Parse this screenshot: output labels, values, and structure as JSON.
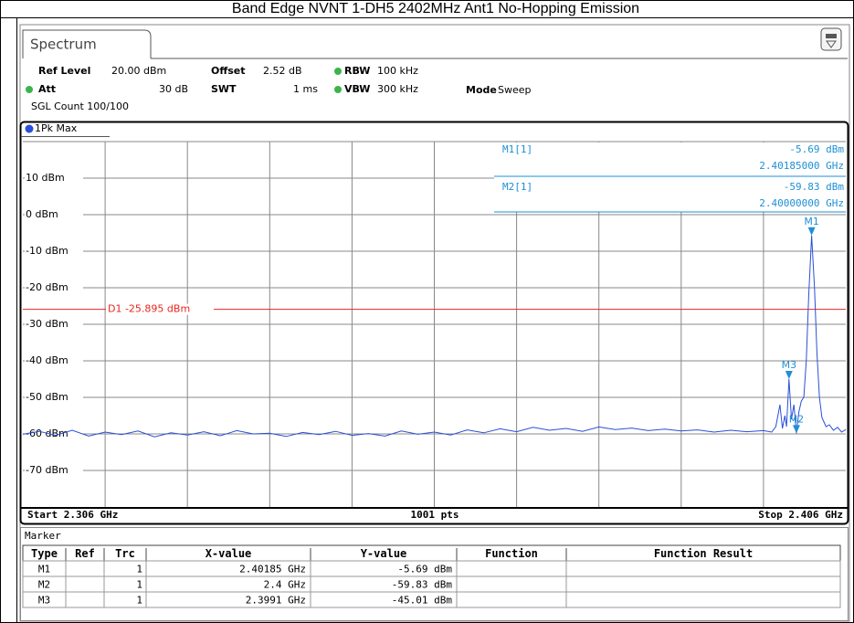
{
  "title": "Band Edge NVNT 1-DH5 2402MHz Ant1 No-Hopping Emission",
  "tab": "Spectrum",
  "settings": {
    "ref_level_label": "Ref Level",
    "ref_level": "20.00 dBm",
    "offset_label": "Offset",
    "offset": "2.52 dB",
    "rbw_label": "RBW",
    "rbw": "100 kHz",
    "att_label": "Att",
    "att": "30 dB",
    "swt_label": "SWT",
    "swt": "1 ms",
    "vbw_label": "VBW",
    "vbw": "300 kHz",
    "mode_label": "Mode",
    "mode": "Sweep",
    "sgl_count": "SGL Count 100/100"
  },
  "marker_readout": [
    {
      "name": "M1[1]",
      "level": "-5.69 dBm",
      "freq": "2.40185000 GHz"
    },
    {
      "name": "M2[1]",
      "level": "-59.83 dBm",
      "freq": "2.40000000 GHz"
    }
  ],
  "footer": {
    "start": "Start 2.306 GHz",
    "points": "1001 pts",
    "stop": "Stop 2.406 GHz"
  },
  "chart_data": {
    "type": "line",
    "xlim": [
      2.306,
      2.406
    ],
    "ylim": [
      -80,
      20
    ],
    "yticks": [
      {
        "value": 10,
        "label": "10 dBm"
      },
      {
        "value": 0,
        "label": "0 dBm"
      },
      {
        "value": -10,
        "label": "-10 dBm"
      },
      {
        "value": -20,
        "label": "-20 dBm"
      },
      {
        "value": -30,
        "label": "-30 dBm"
      },
      {
        "value": -40,
        "label": "-40 dBm"
      },
      {
        "value": -50,
        "label": "-50 dBm"
      },
      {
        "value": -60,
        "label": "-60 dBm"
      },
      {
        "value": -70,
        "label": "-70 dBm"
      }
    ],
    "grid": true,
    "x": [
      2.306,
      2.308,
      2.31,
      2.312,
      2.314,
      2.316,
      2.318,
      2.32,
      2.322,
      2.324,
      2.326,
      2.328,
      2.33,
      2.332,
      2.334,
      2.336,
      2.338,
      2.34,
      2.342,
      2.344,
      2.346,
      2.348,
      2.35,
      2.352,
      2.354,
      2.356,
      2.358,
      2.36,
      2.362,
      2.364,
      2.366,
      2.368,
      2.37,
      2.372,
      2.374,
      2.376,
      2.378,
      2.38,
      2.382,
      2.384,
      2.386,
      2.388,
      2.39,
      2.392,
      2.394,
      2.396,
      2.397,
      2.3975,
      2.398,
      2.3983,
      2.3986,
      2.3988,
      2.3991,
      2.3994,
      2.3997,
      2.4,
      2.4003,
      2.4006,
      2.4009,
      2.4012,
      2.4015,
      2.40185,
      2.4022,
      2.4025,
      2.4028,
      2.4031,
      2.4036,
      2.404,
      2.4045,
      2.405,
      2.4055,
      2.406
    ],
    "series": [
      {
        "name": "1Pk Max",
        "color": "#2a4fd8",
        "values": [
          -60.1,
          -59.3,
          -60.4,
          -59.0,
          -60.6,
          -59.5,
          -60.2,
          -59.2,
          -60.8,
          -59.7,
          -60.3,
          -59.4,
          -60.5,
          -59.1,
          -60.0,
          -59.8,
          -60.7,
          -59.6,
          -60.2,
          -59.3,
          -60.4,
          -59.9,
          -60.6,
          -59.2,
          -60.1,
          -59.5,
          -60.3,
          -58.9,
          -59.7,
          -58.6,
          -59.4,
          -58.2,
          -59.0,
          -58.5,
          -59.3,
          -58.1,
          -58.8,
          -58.4,
          -59.1,
          -58.7,
          -59.2,
          -58.9,
          -59.5,
          -59.0,
          -59.4,
          -59.1,
          -59.5,
          -58.0,
          -52.0,
          -58.5,
          -55.0,
          -58.0,
          -45.01,
          -56.0,
          -52.0,
          -59.83,
          -54.0,
          -51.0,
          -50.0,
          -40.0,
          -22.0,
          -5.69,
          -20.0,
          -38.0,
          -50.0,
          -55.5,
          -58.0,
          -57.5,
          -59.0,
          -58.2,
          -59.5,
          -58.8
        ]
      }
    ],
    "display_line": {
      "label": "D1 -25.895 dBm",
      "value": -25.895,
      "color": "#e8261e"
    },
    "markers": [
      {
        "name": "M1",
        "x": 2.40185,
        "y": -5.69
      },
      {
        "name": "M2",
        "x": 2.4,
        "y": -59.83
      },
      {
        "name": "M3",
        "x": 2.3991,
        "y": -45.01
      }
    ],
    "marker_color": "#1e8fd6"
  },
  "marker_table": {
    "title": "Marker",
    "headers": [
      "Type",
      "Ref",
      "Trc",
      "X-value",
      "Y-value",
      "Function",
      "Function Result"
    ],
    "rows": [
      {
        "type": "M1",
        "trc": "1",
        "x": "2.40185 GHz",
        "y": "-5.69 dBm"
      },
      {
        "type": "M2",
        "trc": "1",
        "x": "2.4 GHz",
        "y": "-59.83 dBm"
      },
      {
        "type": "M3",
        "trc": "1",
        "x": "2.3991 GHz",
        "y": "-45.01 dBm"
      }
    ]
  }
}
